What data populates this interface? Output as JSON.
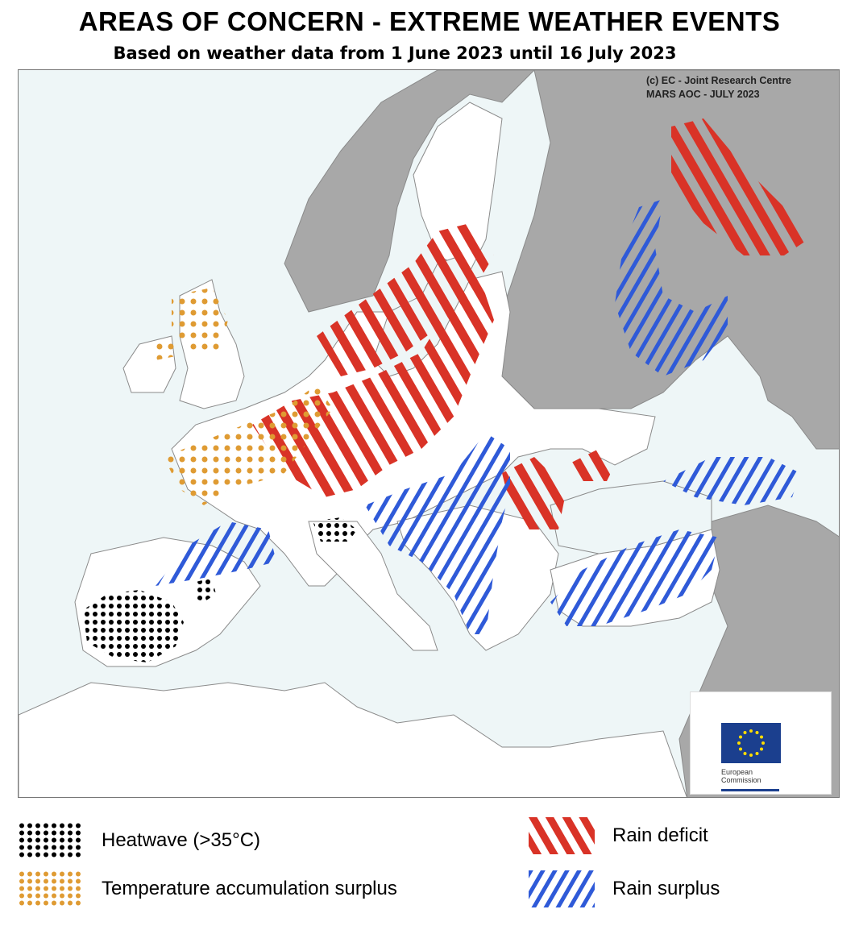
{
  "header": {
    "title": "AREAS OF CONCERN - EXTREME WEATHER EVENTS",
    "subtitle": "Based on weather data from 1 June 2023 until 16 July 2023"
  },
  "credit": {
    "line1": "(c) EC - Joint Research Centre",
    "line2": "MARS AOC - JULY 2023"
  },
  "logo": {
    "line1": "European",
    "line2": "Commission"
  },
  "legend": {
    "heatwave": "Heatwave (>35°C)",
    "temp_surplus": "Temperature accumulation surplus",
    "rain_deficit": "Rain deficit",
    "rain_surplus": "Rain surplus"
  },
  "colors": {
    "sea": "#eef6f7",
    "land_eu": "#ffffff",
    "land_other": "#a8a8a8",
    "border": "#8a8a8a",
    "rain_deficit": "#d93327",
    "rain_surplus": "#2f5ad8",
    "temp_surplus": "#df9b33",
    "heatwave": "#000000",
    "eu_blue": "#1b3f8e",
    "eu_star": "#ffdd00"
  },
  "icons": {
    "flag": "eu-flag-icon",
    "heatwave_swatch": "black-dots-icon",
    "temp_swatch": "orange-dots-icon",
    "deficit_swatch": "red-hatch-icon",
    "surplus_swatch": "blue-hatch-icon"
  }
}
